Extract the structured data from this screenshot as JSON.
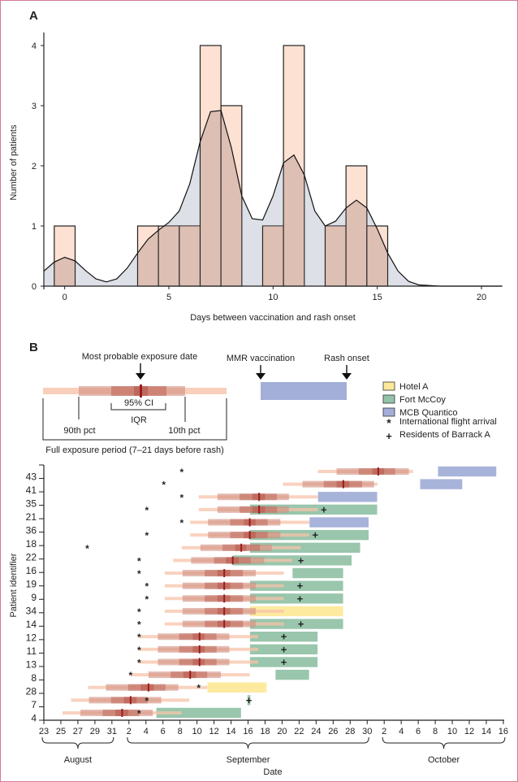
{
  "chart_data": [
    {
      "panel_label": "A",
      "type": "bar",
      "subtype": "histogram-with-density",
      "xlabel": "Days between vaccination and rash onset",
      "ylabel": "Number of patients",
      "xlim": [
        -1,
        21
      ],
      "ylim": [
        0,
        4.2
      ],
      "xticks": [
        0,
        5,
        10,
        15,
        20
      ],
      "yticks": [
        0,
        1,
        2,
        3,
        4
      ],
      "bin_width": 1,
      "categories": [
        0,
        4,
        5,
        6,
        7,
        8,
        10,
        11,
        13,
        14,
        15
      ],
      "values": [
        1,
        1,
        1,
        1,
        4,
        3,
        1,
        4,
        1,
        2,
        1
      ],
      "density_curve": {
        "x": [
          -1,
          -0.5,
          0,
          0.5,
          1,
          1.5,
          2,
          2.5,
          3,
          3.5,
          4,
          4.5,
          5,
          5.5,
          6,
          6.5,
          7,
          7.5,
          8,
          8.5,
          9,
          9.5,
          10,
          10.5,
          11,
          11.5,
          12,
          12.5,
          13,
          13.5,
          14,
          14.5,
          15,
          15.5,
          16,
          16.5,
          17,
          18,
          19,
          20,
          21
        ],
        "y": [
          0.25,
          0.4,
          0.48,
          0.42,
          0.26,
          0.12,
          0.07,
          0.12,
          0.3,
          0.55,
          0.78,
          0.93,
          1.06,
          1.25,
          1.7,
          2.4,
          2.9,
          2.92,
          2.3,
          1.5,
          1.12,
          1.1,
          1.5,
          2.05,
          2.18,
          1.85,
          1.25,
          1.0,
          1.08,
          1.3,
          1.43,
          1.3,
          0.95,
          0.55,
          0.25,
          0.08,
          0.02,
          0,
          0,
          0,
          0
        ]
      },
      "colors": {
        "bar": "#fdd9c8",
        "bar_overlap": "#e3c4ba",
        "density_fill": "#dde0e6",
        "line": "#111111"
      }
    },
    {
      "panel_label": "B",
      "type": "timeline",
      "xlabel": "Date",
      "ylabel": "Patient identifier",
      "x_unit": "days since 23 August",
      "xlim": [
        0,
        54
      ],
      "xtick_labels": [
        "23",
        "25",
        "27",
        "29",
        "31",
        "2",
        "4",
        "6",
        "8",
        "10",
        "12",
        "14",
        "16",
        "18",
        "20",
        "22",
        "24",
        "26",
        "28",
        "30",
        "2",
        "4",
        "6",
        "8",
        "10",
        "12",
        "14",
        "16"
      ],
      "xtick_days": [
        0,
        2,
        4,
        6,
        8,
        10,
        12,
        14,
        16,
        18,
        20,
        22,
        24,
        26,
        28,
        30,
        32,
        34,
        36,
        38,
        40,
        42,
        44,
        46,
        48,
        50,
        52,
        54
      ],
      "months": [
        {
          "label": "August",
          "from": 0,
          "to": 8
        },
        {
          "label": "September",
          "from": 10,
          "to": 38
        },
        {
          "label": "October",
          "from": 40,
          "to": 54
        }
      ],
      "ytick_labels": [
        "43",
        "41",
        "35",
        "21",
        "36",
        "18",
        "22",
        "16",
        "19",
        "9",
        "34",
        "14",
        "12",
        "11",
        "13",
        "8",
        "28",
        "7",
        "4"
      ],
      "legend": {
        "most_probable": "Most probable exposure date",
        "ci": "95% CI",
        "iqr": "IQR",
        "p90": "90th pct",
        "p10": "10th pct",
        "full_period": "Full exposure period (7–21 days before rash)",
        "mmr": "MMR vaccination",
        "rash": "Rash onset",
        "locations": [
          {
            "label": "Hotel A",
            "color": "#fde99a"
          },
          {
            "label": "Fort McCoy",
            "color": "#93c3a8"
          },
          {
            "label": "MCB Quantico",
            "color": "#a3afd8"
          }
        ],
        "markers": [
          {
            "symbol": "*",
            "label": "International flight arrival"
          },
          {
            "symbol": "+",
            "label": "Residents of Barrack A"
          }
        ]
      },
      "rows": [
        {
          "id": "43",
          "full": [
            32.2,
            43.4
          ],
          "p": [
            34.4,
            42.9
          ],
          "iqr": [
            37,
            41.3
          ],
          "ci": [
            38.6,
            40
          ],
          "median": 39.3,
          "loc": "MCB Quantico",
          "vacc": 46.3,
          "rash": 53.2,
          "flight": 16.2,
          "barrack": null
        },
        {
          "id": "41",
          "full": [
            28.1,
            39.2
          ],
          "p": [
            30.4,
            38.8
          ],
          "iqr": [
            32.9,
            37.4
          ],
          "ci": [
            34.4,
            35.9
          ],
          "median": 35.2,
          "loc": "MCB Quantico",
          "vacc": 44.2,
          "rash": 49.2,
          "flight": 14.1,
          "barrack": null
        },
        {
          "id": "35",
          "full": [
            18.2,
            32.2
          ],
          "p": [
            20.4,
            28.8
          ],
          "iqr": [
            23,
            27.4
          ],
          "ci": [
            24.5,
            26
          ],
          "median": 25.3,
          "loc": "MCB Quantico",
          "vacc": 32.2,
          "rash": 39.2,
          "flight": 16.2,
          "barrack": null
        },
        {
          "id": "21",
          "full": [
            18.2,
            32.2
          ],
          "p": [
            20.4,
            28.8
          ],
          "iqr": [
            23,
            27.4
          ],
          "ci": [
            24.5,
            26
          ],
          "median": 25.3,
          "loc": "Fort McCoy",
          "vacc": 24.2,
          "rash": 39.2,
          "flight": 12.1,
          "barrack": 32.9
        },
        {
          "id": "36",
          "full": [
            17.2,
            31.2
          ],
          "p": [
            19.3,
            27.8
          ],
          "iqr": [
            21.9,
            26.3
          ],
          "ci": [
            23.5,
            24.9
          ],
          "median": 24.2,
          "loc": "MCB Quantico",
          "vacc": 31.2,
          "rash": 38.2,
          "flight": 16.2,
          "barrack": null
        },
        {
          "id": "18",
          "full": [
            17.2,
            31.2
          ],
          "p": [
            19.3,
            27.8
          ],
          "iqr": [
            21.9,
            26.3
          ],
          "ci": [
            23.5,
            24.9
          ],
          "median": 24.2,
          "loc": "Fort McCoy",
          "vacc": 24.2,
          "rash": 38.2,
          "flight": 12.1,
          "barrack": 31.9
        },
        {
          "id": "22",
          "full": [
            16.2,
            30.2
          ],
          "p": [
            18.4,
            26.8
          ],
          "iqr": [
            21,
            25.4
          ],
          "ci": [
            22.5,
            23.8
          ],
          "median": 23.2,
          "loc": "Fort McCoy",
          "vacc": 24.2,
          "rash": 37.2,
          "flight": 5.1,
          "barrack": null
        },
        {
          "id": "16",
          "full": [
            15.2,
            29.2
          ],
          "p": [
            17.3,
            25.9
          ],
          "iqr": [
            20,
            24.3
          ],
          "ci": [
            21.4,
            22.9
          ],
          "median": 22.2,
          "loc": "Fort McCoy",
          "vacc": 22.2,
          "rash": 36.2,
          "flight": 11.2,
          "barrack": 30.2
        },
        {
          "id": "19",
          "full": [
            14.2,
            28.2
          ],
          "p": [
            16.3,
            24.9
          ],
          "iqr": [
            18.9,
            23.4
          ],
          "ci": [
            20.4,
            21.9
          ],
          "median": 21.2,
          "loc": "Fort McCoy",
          "vacc": 29.2,
          "rash": 35.2,
          "flight": 11.2,
          "barrack": null
        },
        {
          "id": "9",
          "full": [
            14.2,
            28.2
          ],
          "p": [
            16.3,
            24.9
          ],
          "iqr": [
            18.9,
            23.4
          ],
          "ci": [
            20.4,
            21.9
          ],
          "median": 21.2,
          "loc": "Fort McCoy",
          "vacc": 24.2,
          "rash": 35.2,
          "flight": 12.1,
          "barrack": 30.1
        },
        {
          "id": "",
          "full": [
            14.2,
            28.2
          ],
          "p": [
            16.3,
            24.9
          ],
          "iqr": [
            18.9,
            23.4
          ],
          "ci": [
            20.4,
            21.9
          ],
          "median": 21.2,
          "loc": "Fort McCoy",
          "vacc": 24.2,
          "rash": 35.2,
          "flight": 12.1,
          "barrack": 30.1
        },
        {
          "id": "34",
          "full": [
            14.2,
            28.2
          ],
          "p": [
            16.3,
            24.9
          ],
          "iqr": [
            18.9,
            23.4
          ],
          "ci": [
            20.4,
            21.9
          ],
          "median": 21.2,
          "loc": "Hotel A",
          "vacc": 24.2,
          "rash": 35.2,
          "flight": 11.2,
          "barrack": null
        },
        {
          "id": "14",
          "full": [
            14.2,
            28.2
          ],
          "p": [
            16.3,
            24.9
          ],
          "iqr": [
            18.9,
            23.4
          ],
          "ci": [
            20.4,
            21.9
          ],
          "median": 21.2,
          "loc": "Fort McCoy",
          "vacc": 24.2,
          "rash": 35.2,
          "flight": 11.2,
          "barrack": 30.2
        },
        {
          "id": "12",
          "full": [
            11.2,
            25.2
          ],
          "p": [
            13.4,
            21.8
          ],
          "iqr": [
            15.9,
            20.3
          ],
          "ci": [
            17.5,
            18.9
          ],
          "median": 18.3,
          "loc": "Fort McCoy",
          "vacc": 24.2,
          "rash": 32.2,
          "flight": 11.2,
          "barrack": 28.2
        },
        {
          "id": "11",
          "full": [
            11.2,
            25.2
          ],
          "p": [
            13.4,
            21.8
          ],
          "iqr": [
            15.9,
            20.3
          ],
          "ci": [
            17.5,
            18.9
          ],
          "median": 18.3,
          "loc": "Fort McCoy",
          "vacc": 24.2,
          "rash": 32.2,
          "flight": 11.2,
          "barrack": 28.2
        },
        {
          "id": "13",
          "full": [
            11.2,
            25.2
          ],
          "p": [
            13.4,
            21.8
          ],
          "iqr": [
            15.9,
            20.3
          ],
          "ci": [
            17.5,
            18.9
          ],
          "median": 18.3,
          "loc": "Fort McCoy",
          "vacc": 24.2,
          "rash": 32.2,
          "flight": 11.2,
          "barrack": 28.2
        },
        {
          "id": "8",
          "full": [
            10.2,
            24.2
          ],
          "p": [
            12.3,
            20.8
          ],
          "iqr": [
            14.9,
            19.2
          ],
          "ci": [
            16.4,
            17.9
          ],
          "median": 17.2,
          "loc": "Fort McCoy",
          "vacc": 27.2,
          "rash": 31.2,
          "flight": 10.2,
          "barrack": null
        },
        {
          "id": "28",
          "full": [
            5.2,
            19.2
          ],
          "p": [
            7.3,
            15.8
          ],
          "iqr": [
            9.9,
            14.3
          ],
          "ci": [
            11.4,
            12.9
          ],
          "median": 12.3,
          "loc": "Hotel A",
          "vacc": 19.2,
          "rash": 26.2,
          "flight": 18.2,
          "barrack": null
        },
        {
          "id": "7",
          "full": [
            3.2,
            17.1
          ],
          "p": [
            5.3,
            13.8
          ],
          "iqr": [
            7.9,
            12.2
          ],
          "ci": [
            9.4,
            10.9
          ],
          "median": 10.2,
          "loc": "Fort McCoy",
          "vacc": 23.9,
          "rash": 24.3,
          "flight": 12.1,
          "barrack": 24.1
        },
        {
          "id": "4",
          "full": [
            2.2,
            16.2
          ],
          "p": [
            4.3,
            12.8
          ],
          "iqr": [
            6.9,
            11.2
          ],
          "ci": [
            8.4,
            9.9
          ],
          "median": 9.2,
          "loc": "Fort McCoy",
          "vacc": 13.2,
          "rash": 23.2,
          "flight": 11.2,
          "barrack": null
        }
      ],
      "colors": {
        "full": "#f7c3aa",
        "p": "#d08d7e",
        "iqr": "#c0695d",
        "ci": "#b4574c",
        "median": "#9b1c1c"
      }
    }
  ]
}
